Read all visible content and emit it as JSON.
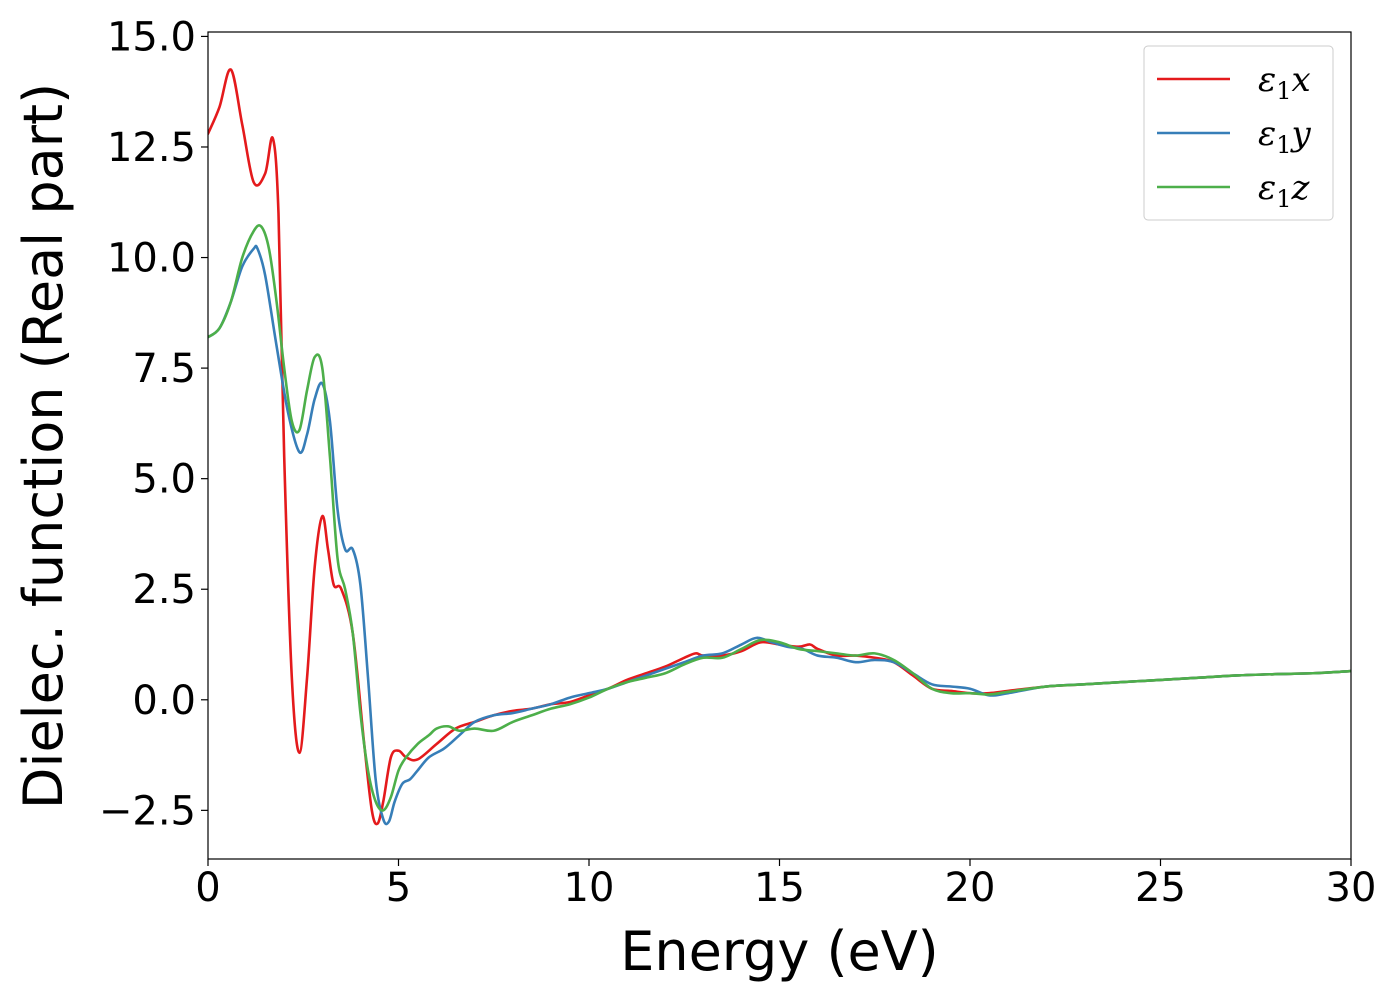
{
  "chart_data": {
    "type": "line",
    "title": "",
    "xlabel": "Energy (eV)",
    "ylabel": "Dielec. function (Real part)",
    "xlim": [
      0,
      30
    ],
    "ylim": [
      -3.6,
      15.1
    ],
    "xticks": [
      0,
      5,
      10,
      15,
      20,
      25,
      30
    ],
    "xtick_labels": [
      "0",
      "5",
      "10",
      "15",
      "20",
      "25",
      "30"
    ],
    "yticks": [
      -2.5,
      0.0,
      2.5,
      5.0,
      7.5,
      10.0,
      12.5,
      15.0
    ],
    "ytick_labels": [
      "−2.5",
      "0.0",
      "2.5",
      "5.0",
      "7.5",
      "10.0",
      "12.5",
      "15.0"
    ],
    "grid": false,
    "legend_position": "top-right",
    "series": [
      {
        "name": "ε₁x",
        "legend_base": "ε",
        "legend_sub": "1",
        "legend_var": "x",
        "color": "#e41a1c",
        "x": [
          0,
          0.3,
          0.6,
          0.9,
          1.2,
          1.5,
          1.7,
          1.85,
          2.0,
          2.2,
          2.4,
          2.6,
          2.8,
          3.0,
          3.15,
          3.3,
          3.5,
          3.8,
          4.1,
          4.3,
          4.45,
          4.6,
          4.8,
          5.0,
          5.2,
          5.5,
          6.0,
          6.5,
          7.0,
          7.5,
          8.0,
          8.5,
          9.0,
          9.5,
          10.0,
          10.5,
          11.0,
          11.5,
          12.0,
          12.5,
          12.8,
          13.0,
          13.5,
          14.0,
          14.5,
          15.0,
          15.5,
          15.8,
          16.0,
          16.5,
          17.0,
          17.5,
          18.0,
          18.5,
          19.0,
          19.5,
          20.0,
          20.5,
          21.0,
          22.0,
          23.0,
          24.0,
          25.0,
          26.0,
          27.0,
          28.0,
          29.0,
          30.0
        ],
        "y": [
          12.8,
          13.4,
          14.25,
          13.0,
          11.7,
          11.9,
          12.7,
          11.0,
          5.5,
          0.5,
          -1.2,
          0.5,
          3.0,
          4.15,
          3.4,
          2.6,
          2.5,
          1.5,
          -1.0,
          -2.5,
          -2.8,
          -2.3,
          -1.3,
          -1.15,
          -1.3,
          -1.35,
          -1.0,
          -0.65,
          -0.5,
          -0.35,
          -0.25,
          -0.2,
          -0.1,
          -0.05,
          0.1,
          0.25,
          0.45,
          0.6,
          0.75,
          0.95,
          1.05,
          1.0,
          1.0,
          1.1,
          1.3,
          1.25,
          1.2,
          1.25,
          1.15,
          1.0,
          1.0,
          0.95,
          0.85,
          0.55,
          0.25,
          0.2,
          0.15,
          0.15,
          0.2,
          0.3,
          0.35,
          0.4,
          0.45,
          0.5,
          0.55,
          0.58,
          0.6,
          0.65
        ]
      },
      {
        "name": "ε₁y",
        "legend_base": "ε",
        "legend_sub": "1",
        "legend_var": "y",
        "color": "#377eb8",
        "x": [
          0,
          0.3,
          0.6,
          0.9,
          1.2,
          1.3,
          1.5,
          1.8,
          2.1,
          2.4,
          2.6,
          2.8,
          3.0,
          3.2,
          3.4,
          3.6,
          3.8,
          4.0,
          4.2,
          4.4,
          4.6,
          4.75,
          4.9,
          5.1,
          5.3,
          5.5,
          5.8,
          6.2,
          6.6,
          7.0,
          7.5,
          8.0,
          8.5,
          9.0,
          9.5,
          10.0,
          10.5,
          11.0,
          11.5,
          12.0,
          12.5,
          13.0,
          13.5,
          14.0,
          14.4,
          14.8,
          15.2,
          15.6,
          16.0,
          16.5,
          17.0,
          17.5,
          18.0,
          18.5,
          19.0,
          19.5,
          20.0,
          20.5,
          21.0,
          22.0,
          23.0,
          24.0,
          25.0,
          26.0,
          27.0,
          28.0,
          29.0,
          30.0
        ],
        "y": [
          8.2,
          8.4,
          9.0,
          9.8,
          10.2,
          10.2,
          9.6,
          8.0,
          6.5,
          5.6,
          6.0,
          6.8,
          7.15,
          6.3,
          4.3,
          3.4,
          3.4,
          2.6,
          0.5,
          -1.8,
          -2.7,
          -2.75,
          -2.3,
          -1.9,
          -1.8,
          -1.6,
          -1.3,
          -1.1,
          -0.8,
          -0.5,
          -0.35,
          -0.3,
          -0.2,
          -0.1,
          0.05,
          0.15,
          0.25,
          0.4,
          0.55,
          0.7,
          0.85,
          1.0,
          1.05,
          1.25,
          1.4,
          1.3,
          1.2,
          1.15,
          1.0,
          0.95,
          0.85,
          0.9,
          0.85,
          0.6,
          0.35,
          0.3,
          0.25,
          0.1,
          0.15,
          0.3,
          0.35,
          0.4,
          0.45,
          0.5,
          0.55,
          0.58,
          0.6,
          0.65
        ]
      },
      {
        "name": "ε₁z",
        "legend_base": "ε",
        "legend_sub": "1",
        "legend_var": "z",
        "color": "#4daf4a",
        "x": [
          0,
          0.3,
          0.6,
          0.9,
          1.2,
          1.4,
          1.6,
          1.8,
          2.0,
          2.2,
          2.4,
          2.6,
          2.8,
          3.0,
          3.2,
          3.4,
          3.6,
          3.8,
          4.0,
          4.2,
          4.4,
          4.6,
          4.8,
          5.0,
          5.2,
          5.5,
          5.8,
          6.0,
          6.3,
          6.6,
          7.0,
          7.5,
          8.0,
          8.5,
          9.0,
          9.5,
          10.0,
          10.5,
          11.0,
          11.5,
          12.0,
          12.5,
          13.0,
          13.5,
          14.0,
          14.5,
          15.0,
          15.5,
          16.0,
          16.5,
          17.0,
          17.5,
          18.0,
          18.5,
          19.0,
          19.5,
          20.0,
          20.5,
          21.0,
          22.0,
          23.0,
          24.0,
          25.0,
          26.0,
          27.0,
          28.0,
          29.0,
          30.0
        ],
        "y": [
          8.2,
          8.4,
          9.0,
          10.0,
          10.6,
          10.7,
          10.2,
          9.0,
          7.5,
          6.3,
          6.1,
          7.0,
          7.75,
          7.5,
          5.5,
          3.2,
          2.5,
          1.5,
          -0.3,
          -1.6,
          -2.3,
          -2.5,
          -2.2,
          -1.6,
          -1.3,
          -1.0,
          -0.8,
          -0.65,
          -0.6,
          -0.7,
          -0.65,
          -0.7,
          -0.5,
          -0.35,
          -0.2,
          -0.1,
          0.05,
          0.25,
          0.4,
          0.5,
          0.6,
          0.8,
          0.95,
          0.95,
          1.15,
          1.35,
          1.3,
          1.15,
          1.1,
          1.05,
          1.0,
          1.05,
          0.9,
          0.6,
          0.25,
          0.15,
          0.15,
          0.12,
          0.18,
          0.3,
          0.35,
          0.4,
          0.45,
          0.5,
          0.55,
          0.58,
          0.6,
          0.65
        ]
      }
    ]
  }
}
